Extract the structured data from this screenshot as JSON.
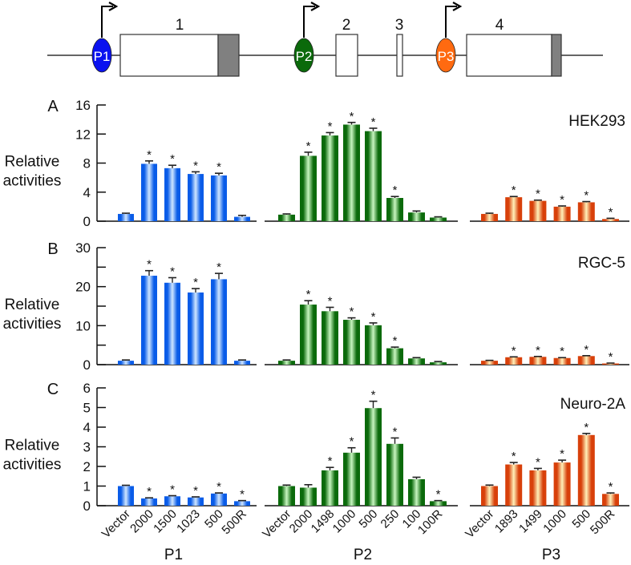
{
  "schematic": {
    "promoters": [
      {
        "label": "P1",
        "color": "#0a12f0"
      },
      {
        "label": "P2",
        "color": "#0b6a0b"
      },
      {
        "label": "P3",
        "color": "#ff6a10"
      }
    ],
    "exons": [
      "1",
      "2",
      "3",
      "4"
    ],
    "utr_color": "#808080"
  },
  "chart_data": {
    "type": "bar",
    "ylabel": "Relative activities",
    "groups": [
      {
        "name": "P1",
        "color": "blue",
        "categories": [
          "Vector",
          "2000",
          "1500",
          "1023",
          "500",
          "500R"
        ]
      },
      {
        "name": "P2",
        "color": "green",
        "categories": [
          "Vector",
          "2000",
          "1498",
          "1000",
          "500",
          "250",
          "100",
          "100R"
        ]
      },
      {
        "name": "P3",
        "color": "orange",
        "categories": [
          "Vector",
          "1893",
          "1499",
          "1000",
          "500",
          "500R"
        ]
      }
    ],
    "colors": {
      "blue": {
        "dark": "#0a5ce8",
        "light": "#cfe6ff"
      },
      "green": {
        "dark": "#0b6a0b",
        "light": "#c8f5c0"
      },
      "orange": {
        "dark": "#d8400a",
        "light": "#fff0b8"
      }
    },
    "panels": [
      {
        "letter": "A",
        "cell_line": "HEK293",
        "ylim": [
          0,
          16
        ],
        "yticks": [
          0,
          4,
          8,
          12,
          16
        ],
        "series": [
          {
            "group": "P1",
            "values": [
              1.0,
              7.9,
              7.3,
              6.5,
              6.3,
              0.6
            ],
            "errors": [
              0.1,
              0.4,
              0.4,
              0.3,
              0.3,
              0.2
            ],
            "significant": [
              false,
              true,
              true,
              true,
              true,
              false
            ]
          },
          {
            "group": "P2",
            "values": [
              0.9,
              9.0,
              11.8,
              13.3,
              12.4,
              3.2,
              1.2,
              0.5
            ],
            "errors": [
              0.1,
              0.5,
              0.4,
              0.3,
              0.4,
              0.2,
              0.2,
              0.1
            ],
            "significant": [
              false,
              true,
              true,
              true,
              true,
              true,
              false,
              false
            ]
          },
          {
            "group": "P3",
            "values": [
              1.0,
              3.3,
              2.8,
              2.0,
              2.6,
              0.3
            ],
            "errors": [
              0.1,
              0.1,
              0.1,
              0.1,
              0.1,
              0.1
            ],
            "significant": [
              false,
              true,
              true,
              true,
              true,
              true
            ]
          }
        ]
      },
      {
        "letter": "B",
        "cell_line": "RGC-5",
        "ylim": [
          0,
          30
        ],
        "yticks": [
          0,
          10,
          20,
          30
        ],
        "minor_yticks": [
          5,
          15,
          25
        ],
        "series": [
          {
            "group": "P1",
            "values": [
              1.0,
              22.8,
              21.0,
              18.5,
              21.9,
              1.0
            ],
            "errors": [
              0.2,
              1.3,
              1.3,
              1.0,
              1.5,
              0.2
            ],
            "significant": [
              false,
              true,
              true,
              true,
              true,
              false
            ]
          },
          {
            "group": "P2",
            "values": [
              1.0,
              15.4,
              13.7,
              11.5,
              10.1,
              4.2,
              1.6,
              0.6
            ],
            "errors": [
              0.2,
              1.0,
              1.0,
              0.5,
              0.6,
              0.3,
              0.2,
              0.2
            ],
            "significant": [
              false,
              true,
              true,
              true,
              true,
              true,
              false,
              false
            ]
          },
          {
            "group": "P3",
            "values": [
              1.0,
              1.9,
              2.0,
              1.7,
              2.2,
              0.3
            ],
            "errors": [
              0.1,
              0.1,
              0.1,
              0.1,
              0.1,
              0.1
            ],
            "significant": [
              false,
              true,
              true,
              true,
              true,
              true
            ]
          }
        ]
      },
      {
        "letter": "C",
        "cell_line": "Neuro-2A",
        "ylim": [
          0,
          6
        ],
        "yticks": [
          0,
          1,
          2,
          3,
          4,
          5,
          6
        ],
        "series": [
          {
            "group": "P1",
            "values": [
              1.0,
              0.37,
              0.48,
              0.42,
              0.62,
              0.23
            ],
            "errors": [
              0.04,
              0.03,
              0.03,
              0.03,
              0.03,
              0.03
            ],
            "significant": [
              false,
              true,
              true,
              true,
              true,
              true
            ]
          },
          {
            "group": "P2",
            "values": [
              1.0,
              0.92,
              1.8,
              2.7,
              4.97,
              3.15,
              1.35,
              0.23
            ],
            "errors": [
              0.05,
              0.15,
              0.15,
              0.25,
              0.35,
              0.3,
              0.1,
              0.03
            ],
            "significant": [
              false,
              false,
              true,
              true,
              true,
              true,
              false,
              true
            ]
          },
          {
            "group": "P3",
            "values": [
              1.0,
              2.1,
              1.8,
              2.2,
              3.6,
              0.6
            ],
            "errors": [
              0.05,
              0.1,
              0.1,
              0.12,
              0.08,
              0.05
            ],
            "significant": [
              false,
              true,
              true,
              true,
              true,
              true
            ]
          }
        ]
      }
    ],
    "significance_marker": "*"
  }
}
